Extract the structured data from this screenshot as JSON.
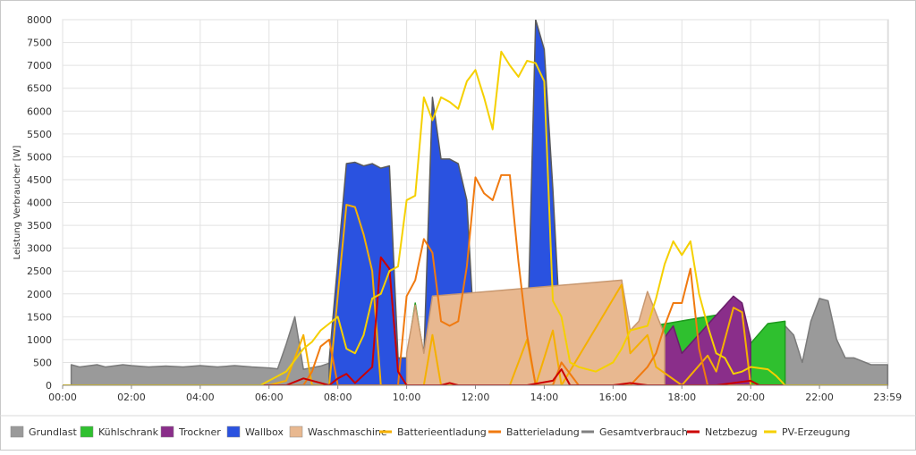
{
  "chart_data": {
    "type": "area",
    "xlabel": "",
    "ylabel": "Leistung Verbraucher [W]",
    "ylim": [
      0,
      8000
    ],
    "yticks": [
      0,
      500,
      1000,
      1500,
      2000,
      2500,
      3000,
      3500,
      4000,
      4500,
      5000,
      5500,
      6000,
      6500,
      7000,
      7500,
      8000
    ],
    "xlim": [
      0,
      24
    ],
    "xticks": [
      {
        "v": 0,
        "label": "00:00"
      },
      {
        "v": 2,
        "label": "02:00"
      },
      {
        "v": 4,
        "label": "04:00"
      },
      {
        "v": 6,
        "label": "06:00"
      },
      {
        "v": 8,
        "label": "08:00"
      },
      {
        "v": 10,
        "label": "10:00"
      },
      {
        "v": 12,
        "label": "12:00"
      },
      {
        "v": 14,
        "label": "14:00"
      },
      {
        "v": 16,
        "label": "16:00"
      },
      {
        "v": 18,
        "label": "18:00"
      },
      {
        "v": 20,
        "label": "20:00"
      },
      {
        "v": 22,
        "label": "22:00"
      },
      {
        "v": 23.98,
        "label": "23:59"
      }
    ],
    "grid": true,
    "legend_position": "bottom",
    "areas": [
      {
        "name": "Grundlast",
        "color": "#9a9a9a",
        "stroke": "#7a7a7a",
        "points": [
          [
            0.25,
            450
          ],
          [
            0.5,
            400
          ],
          [
            1,
            450
          ],
          [
            1.25,
            400
          ],
          [
            1.75,
            450
          ],
          [
            2,
            430
          ],
          [
            2.5,
            400
          ],
          [
            3,
            420
          ],
          [
            3.5,
            400
          ],
          [
            4,
            430
          ],
          [
            4.5,
            400
          ],
          [
            5,
            430
          ],
          [
            5.5,
            400
          ],
          [
            6,
            380
          ],
          [
            6.25,
            360
          ],
          [
            6.5,
            900
          ],
          [
            6.75,
            1500
          ],
          [
            7,
            350
          ],
          [
            7.5,
            420
          ],
          [
            8,
            550
          ],
          [
            8.5,
            550
          ],
          [
            9,
            520
          ],
          [
            9.5,
            500
          ],
          [
            10,
            550
          ],
          [
            10.25,
            1700
          ],
          [
            10.5,
            450
          ],
          [
            10.75,
            1900
          ],
          [
            11,
            600
          ],
          [
            11.5,
            500
          ],
          [
            12,
            500
          ],
          [
            12.5,
            500
          ],
          [
            13,
            500
          ],
          [
            13.25,
            700
          ],
          [
            13.5,
            600
          ],
          [
            13.75,
            500
          ],
          [
            14,
            600
          ],
          [
            14.5,
            700
          ],
          [
            15,
            600
          ],
          [
            15.5,
            600
          ],
          [
            16,
            500
          ],
          [
            16.25,
            2300
          ],
          [
            16.5,
            600
          ],
          [
            16.75,
            500
          ],
          [
            17,
            600
          ],
          [
            17.5,
            600
          ],
          [
            17.75,
            900
          ],
          [
            18,
            600
          ],
          [
            18.5,
            500
          ],
          [
            18.75,
            1500
          ],
          [
            19,
            600
          ],
          [
            19.25,
            500
          ],
          [
            19.5,
            1500
          ],
          [
            19.75,
            500
          ],
          [
            20,
            500
          ],
          [
            20.5,
            1300
          ],
          [
            21,
            1300
          ],
          [
            21.25,
            1100
          ],
          [
            21.5,
            500
          ],
          [
            21.75,
            1400
          ],
          [
            22,
            1900
          ],
          [
            22.25,
            1850
          ],
          [
            22.5,
            1000
          ],
          [
            22.75,
            600
          ],
          [
            23,
            600
          ],
          [
            23.5,
            450
          ],
          [
            23.98,
            450
          ]
        ]
      },
      {
        "name": "Kühlschrank",
        "color": "#2fc02f",
        "stroke": "#1f9a1f",
        "points": [
          [
            10,
            600
          ],
          [
            10.25,
            1800
          ],
          [
            10.5,
            650
          ],
          [
            10.75,
            2000
          ],
          [
            11,
            750
          ],
          [
            11.5,
            700
          ],
          [
            13.25,
            800
          ],
          [
            19.5,
            1600
          ],
          [
            19.75,
            700
          ],
          [
            20.5,
            1350
          ],
          [
            21,
            1400
          ]
        ]
      },
      {
        "name": "Trockner",
        "color": "#8a2e8a",
        "stroke": "#6a1e6a",
        "points": [
          [
            16.5,
            650
          ],
          [
            17,
            1000
          ],
          [
            17.5,
            1050
          ],
          [
            17.75,
            1300
          ],
          [
            18,
            700
          ],
          [
            19.5,
            1950
          ],
          [
            19.75,
            1800
          ],
          [
            20,
            1000
          ]
        ]
      },
      {
        "name": "Wallbox",
        "color": "#2a52e0",
        "stroke": "#5a5a5a",
        "points": [
          [
            7.75,
            550
          ],
          [
            8.25,
            4850
          ],
          [
            8.5,
            4880
          ],
          [
            8.75,
            4800
          ],
          [
            9,
            4850
          ],
          [
            9.25,
            4750
          ],
          [
            9.5,
            4800
          ],
          [
            9.75,
            600
          ],
          [
            10.5,
            600
          ],
          [
            10.75,
            6300
          ],
          [
            11,
            4950
          ],
          [
            11.25,
            4950
          ],
          [
            11.5,
            4850
          ],
          [
            11.75,
            4050
          ],
          [
            12,
            600
          ],
          [
            13.5,
            600
          ],
          [
            13.75,
            8000
          ],
          [
            14,
            7350
          ],
          [
            14.25,
            4300
          ],
          [
            14.5,
            700
          ]
        ]
      },
      {
        "name": "Waschmaschine",
        "color": "#e8b890",
        "stroke": "#c89870",
        "points": [
          [
            10,
            700
          ],
          [
            10.25,
            1750
          ],
          [
            10.5,
            700
          ],
          [
            10.75,
            1950
          ],
          [
            16.25,
            2300
          ],
          [
            16.5,
            1200
          ],
          [
            16.75,
            1400
          ],
          [
            17,
            2050
          ],
          [
            17.5,
            1100
          ]
        ]
      },
      {
        "name": "Gesamtverbrauch",
        "color": "#808080",
        "stroke": "#6c6c6c",
        "points": []
      }
    ],
    "lines": [
      {
        "name": "Batterieentladung",
        "color": "#f5b000",
        "points": [
          [
            0,
            0
          ],
          [
            6,
            0
          ],
          [
            6.5,
            100
          ],
          [
            7,
            1100
          ],
          [
            7.25,
            0
          ],
          [
            7.75,
            0
          ],
          [
            8.25,
            3950
          ],
          [
            8.5,
            3900
          ],
          [
            8.75,
            3300
          ],
          [
            9,
            2500
          ],
          [
            9.25,
            0
          ],
          [
            10.5,
            0
          ],
          [
            10.75,
            1100
          ],
          [
            11,
            0
          ],
          [
            13,
            0
          ],
          [
            13.5,
            1000
          ],
          [
            13.75,
            0
          ],
          [
            14.25,
            1200
          ],
          [
            14.5,
            0
          ],
          [
            16.25,
            2200
          ],
          [
            16.5,
            700
          ],
          [
            17,
            1100
          ],
          [
            17.25,
            400
          ],
          [
            18,
            0
          ],
          [
            18.75,
            650
          ],
          [
            19,
            300
          ],
          [
            19.5,
            1700
          ],
          [
            19.75,
            1600
          ],
          [
            20,
            0
          ],
          [
            20.5,
            0
          ],
          [
            21,
            0
          ],
          [
            23.98,
            0
          ]
        ]
      },
      {
        "name": "Batterieladung",
        "color": "#f07a10",
        "points": [
          [
            0,
            0
          ],
          [
            7,
            0
          ],
          [
            7.25,
            300
          ],
          [
            7.5,
            850
          ],
          [
            7.75,
            1000
          ],
          [
            8,
            0
          ],
          [
            9.75,
            0
          ],
          [
            10,
            1950
          ],
          [
            10.25,
            2300
          ],
          [
            10.5,
            3200
          ],
          [
            10.75,
            2900
          ],
          [
            11,
            1400
          ],
          [
            11.25,
            1300
          ],
          [
            11.5,
            1400
          ],
          [
            11.75,
            2600
          ],
          [
            12,
            4550
          ],
          [
            12.25,
            4200
          ],
          [
            12.5,
            4050
          ],
          [
            12.75,
            4600
          ],
          [
            13,
            4600
          ],
          [
            13.25,
            2700
          ],
          [
            13.5,
            1100
          ],
          [
            13.75,
            0
          ],
          [
            14.25,
            0
          ],
          [
            14.5,
            500
          ],
          [
            15,
            0
          ],
          [
            16.5,
            0
          ],
          [
            17,
            400
          ],
          [
            17.25,
            700
          ],
          [
            17.5,
            1300
          ],
          [
            17.75,
            1800
          ],
          [
            18,
            1800
          ],
          [
            18.25,
            2550
          ],
          [
            18.5,
            800
          ],
          [
            18.75,
            0
          ],
          [
            20,
            0
          ],
          [
            23.98,
            0
          ]
        ]
      },
      {
        "name": "Netzbezug",
        "color": "#cc0000",
        "points": [
          [
            0,
            0
          ],
          [
            6.5,
            0
          ],
          [
            7,
            150
          ],
          [
            7.5,
            50
          ],
          [
            7.75,
            0
          ],
          [
            8,
            150
          ],
          [
            8.25,
            250
          ],
          [
            8.5,
            50
          ],
          [
            9,
            400
          ],
          [
            9.25,
            2800
          ],
          [
            9.5,
            2550
          ],
          [
            9.75,
            300
          ],
          [
            10,
            0
          ],
          [
            11,
            0
          ],
          [
            11.25,
            50
          ],
          [
            11.5,
            0
          ],
          [
            13,
            0
          ],
          [
            13.5,
            0
          ],
          [
            14.25,
            100
          ],
          [
            14.5,
            350
          ],
          [
            14.75,
            0
          ],
          [
            15,
            0
          ],
          [
            16,
            0
          ],
          [
            16.5,
            50
          ],
          [
            17,
            0
          ],
          [
            18.75,
            0
          ],
          [
            19,
            0
          ],
          [
            20,
            100
          ],
          [
            20.25,
            0
          ],
          [
            23.98,
            0
          ]
        ]
      },
      {
        "name": "PV-Erzeugung",
        "color": "#f5d000",
        "points": [
          [
            0,
            0
          ],
          [
            5.75,
            0
          ],
          [
            6,
            100
          ],
          [
            6.5,
            300
          ],
          [
            7,
            800
          ],
          [
            7.25,
            950
          ],
          [
            7.5,
            1200
          ],
          [
            7.75,
            1350
          ],
          [
            8,
            1500
          ],
          [
            8.25,
            800
          ],
          [
            8.5,
            700
          ],
          [
            8.75,
            1100
          ],
          [
            9,
            1900
          ],
          [
            9.25,
            2000
          ],
          [
            9.5,
            2500
          ],
          [
            9.75,
            2600
          ],
          [
            10,
            4050
          ],
          [
            10.25,
            4150
          ],
          [
            10.5,
            6300
          ],
          [
            10.75,
            5800
          ],
          [
            11,
            6300
          ],
          [
            11.25,
            6200
          ],
          [
            11.5,
            6050
          ],
          [
            11.75,
            6650
          ],
          [
            12,
            6900
          ],
          [
            12.25,
            6300
          ],
          [
            12.5,
            5600
          ],
          [
            12.75,
            7300
          ],
          [
            13,
            7000
          ],
          [
            13.25,
            6750
          ],
          [
            13.5,
            7100
          ],
          [
            13.75,
            7050
          ],
          [
            14,
            6650
          ],
          [
            14.25,
            1850
          ],
          [
            14.5,
            1500
          ],
          [
            14.75,
            500
          ],
          [
            15,
            400
          ],
          [
            15.5,
            300
          ],
          [
            16,
            500
          ],
          [
            16.25,
            800
          ],
          [
            16.5,
            1200
          ],
          [
            17,
            1300
          ],
          [
            17.25,
            1900
          ],
          [
            17.5,
            2650
          ],
          [
            17.75,
            3150
          ],
          [
            18,
            2850
          ],
          [
            18.25,
            3150
          ],
          [
            18.5,
            2000
          ],
          [
            18.75,
            1300
          ],
          [
            19,
            700
          ],
          [
            19.25,
            600
          ],
          [
            19.5,
            250
          ],
          [
            19.75,
            300
          ],
          [
            20,
            400
          ],
          [
            20.5,
            350
          ],
          [
            20.75,
            200
          ],
          [
            21,
            0
          ],
          [
            23.98,
            0
          ]
        ]
      }
    ],
    "legend": [
      {
        "name": "Grundlast",
        "color": "#9a9a9a",
        "kind": "swatch"
      },
      {
        "name": "Kühlschrank",
        "color": "#2fc02f",
        "kind": "swatch"
      },
      {
        "name": "Trockner",
        "color": "#8a2e8a",
        "kind": "swatch"
      },
      {
        "name": "Wallbox",
        "color": "#2a52e0",
        "kind": "swatch"
      },
      {
        "name": "Waschmaschine",
        "color": "#e8b890",
        "kind": "swatch"
      },
      {
        "name": "Batterieentladung",
        "color": "#f5b000",
        "kind": "line"
      },
      {
        "name": "Batterieladung",
        "color": "#f07a10",
        "kind": "line"
      },
      {
        "name": "Gesamtverbrauch",
        "color": "#808080",
        "kind": "line"
      },
      {
        "name": "Netzbezug",
        "color": "#cc0000",
        "kind": "line"
      },
      {
        "name": "PV-Erzeugung",
        "color": "#f5d000",
        "kind": "line"
      }
    ]
  }
}
